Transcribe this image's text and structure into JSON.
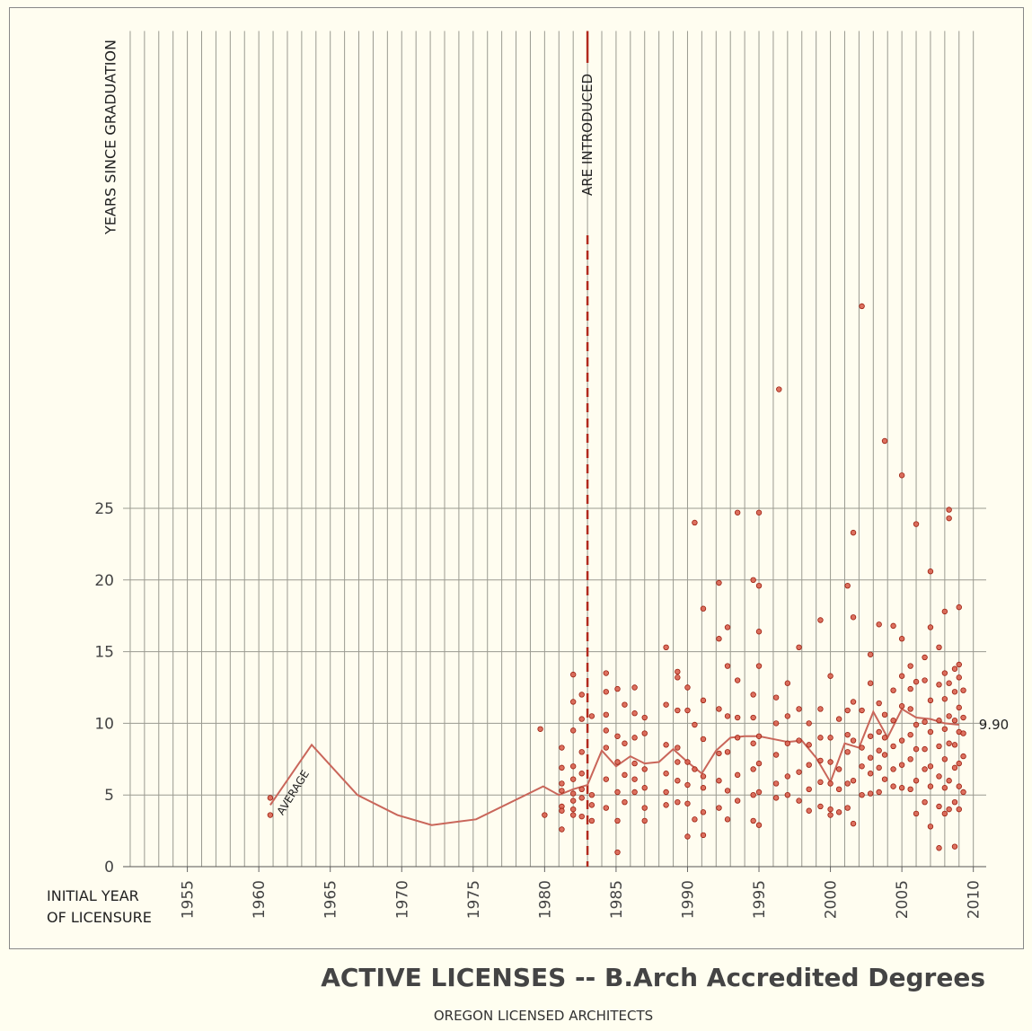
{
  "chart_data": {
    "type": "scatter",
    "title": "ACTIVE LICENSES -- B.Arch Accredited Degrees",
    "subtitle": "OREGON LICENSED ARCHITECTS",
    "y_label": "YEARS SINCE GRADUATION",
    "x_label": [
      "INITIAL YEAR",
      "OF LICENSURE"
    ],
    "xlim": [
      1950.5,
      2010.9
    ],
    "xticks": [
      1955,
      1960,
      1965,
      1970,
      1975,
      1980,
      1985,
      1990,
      1995,
      2000,
      2005,
      2010
    ],
    "ylim": [
      0,
      58.3
    ],
    "yticks": [
      0,
      5,
      10,
      15,
      20,
      25
    ],
    "grid": true,
    "annotation": {
      "text": "ARE INTRODUCED",
      "x": 1983,
      "color": "#b22a1e"
    },
    "scatter": {
      "color": "#d9604f",
      "edge": "#9c2010",
      "groups": [
        {
          "x": 1960.8,
          "values": [
            4.8,
            3.6
          ]
        },
        {
          "x": 1979.7,
          "values": [
            9.6
          ]
        },
        {
          "x": 1980,
          "values": [
            3.6
          ]
        },
        {
          "x": 1981.2,
          "values": [
            4.2,
            5.3,
            6.9,
            8.3,
            3.9,
            2.6,
            5.8
          ]
        },
        {
          "x": 1982,
          "values": [
            4.0,
            5.1,
            6.1,
            7.0,
            9.5,
            11.5,
            13.4,
            3.6,
            4.6
          ]
        },
        {
          "x": 1982.6,
          "values": [
            4.8,
            8.0,
            10.3,
            3.5,
            5.4,
            6.5,
            12.0
          ]
        },
        {
          "x": 1983.3,
          "values": [
            3.2,
            4.3,
            5.0,
            10.5
          ]
        },
        {
          "x": 1984.3,
          "values": [
            4.1,
            6.1,
            8.3,
            9.5,
            10.6,
            12.2,
            13.5
          ]
        },
        {
          "x": 1985.1,
          "values": [
            1.0,
            3.2,
            5.2,
            7.3,
            9.1,
            12.4
          ]
        },
        {
          "x": 1985.6,
          "values": [
            4.5,
            6.4,
            8.6,
            11.3
          ]
        },
        {
          "x": 1986.3,
          "values": [
            5.2,
            6.1,
            7.2,
            9.0,
            10.7,
            12.5
          ]
        },
        {
          "x": 1987,
          "values": [
            3.2,
            4.1,
            5.5,
            6.8,
            9.3,
            10.4
          ]
        },
        {
          "x": 1988.5,
          "values": [
            4.3,
            5.2,
            6.5,
            8.5,
            11.3,
            15.3
          ]
        },
        {
          "x": 1989.3,
          "values": [
            4.5,
            6.0,
            7.3,
            8.3,
            10.9,
            13.6,
            13.2
          ]
        },
        {
          "x": 1990,
          "values": [
            2.1,
            4.4,
            5.7,
            7.3,
            10.9,
            12.5
          ]
        },
        {
          "x": 1990.5,
          "values": [
            24.0,
            3.3,
            6.8,
            9.9
          ]
        },
        {
          "x": 1991.1,
          "values": [
            2.2,
            3.8,
            5.5,
            6.3,
            8.9,
            11.6,
            18.0
          ]
        },
        {
          "x": 1992.2,
          "values": [
            4.1,
            6.0,
            7.9,
            11.0,
            15.9,
            19.8
          ]
        },
        {
          "x": 1992.8,
          "values": [
            3.3,
            5.3,
            8.0,
            10.5,
            14.0,
            16.7
          ]
        },
        {
          "x": 1993.5,
          "values": [
            24.7,
            4.6,
            6.4,
            9.0,
            10.4,
            13.0
          ]
        },
        {
          "x": 1994.6,
          "values": [
            3.2,
            5.0,
            6.8,
            8.6,
            10.4,
            12.0,
            20.0
          ]
        },
        {
          "x": 1995,
          "values": [
            24.7,
            2.9,
            5.2,
            7.2,
            9.1,
            14.0,
            16.4,
            19.6
          ]
        },
        {
          "x": 1996.2,
          "values": [
            4.8,
            5.8,
            7.8,
            10.0,
            11.8
          ]
        },
        {
          "x": 1996.4,
          "values": [
            33.3
          ]
        },
        {
          "x": 1997,
          "values": [
            5.0,
            6.3,
            8.6,
            10.5,
            12.8
          ]
        },
        {
          "x": 1997.8,
          "values": [
            4.6,
            6.6,
            8.8,
            11.0,
            15.3
          ]
        },
        {
          "x": 1998.5,
          "values": [
            3.9,
            5.4,
            7.1,
            8.5,
            10.0
          ]
        },
        {
          "x": 1999.3,
          "values": [
            4.2,
            5.9,
            7.4,
            9.0,
            11.0,
            17.2
          ]
        },
        {
          "x": 2000,
          "values": [
            3.6,
            4.0,
            5.8,
            7.3,
            9.0,
            13.3
          ]
        },
        {
          "x": 2000.6,
          "values": [
            3.8,
            5.4,
            6.8,
            10.3
          ]
        },
        {
          "x": 2001.2,
          "values": [
            4.1,
            5.8,
            8.0,
            9.2,
            10.9,
            19.6
          ]
        },
        {
          "x": 2001.6,
          "values": [
            3.0,
            6.0,
            8.8,
            11.5,
            17.4,
            23.3
          ]
        },
        {
          "x": 2002.2,
          "values": [
            39.1,
            5.0,
            7.0,
            8.3,
            10.9
          ]
        },
        {
          "x": 2002.8,
          "values": [
            5.1,
            6.5,
            7.6,
            9.1,
            12.8,
            14.8
          ]
        },
        {
          "x": 2003.4,
          "values": [
            5.2,
            6.9,
            8.1,
            9.4,
            11.4,
            16.9
          ]
        },
        {
          "x": 2003.8,
          "values": [
            29.7,
            6.1,
            7.8,
            9.0,
            10.6
          ]
        },
        {
          "x": 2004.4,
          "values": [
            5.6,
            6.8,
            8.4,
            10.2,
            12.3,
            16.8
          ]
        },
        {
          "x": 2005,
          "values": [
            27.3,
            5.5,
            7.1,
            8.8,
            11.2,
            13.3,
            15.9
          ]
        },
        {
          "x": 2005.6,
          "values": [
            5.4,
            7.5,
            9.2,
            11.0,
            12.4,
            14.0
          ]
        },
        {
          "x": 2006,
          "values": [
            23.9,
            3.7,
            6.0,
            8.2,
            9.9,
            12.9
          ]
        },
        {
          "x": 2006.6,
          "values": [
            4.5,
            6.8,
            8.2,
            10.1,
            13.0,
            14.6
          ]
        },
        {
          "x": 2007,
          "values": [
            20.6,
            2.8,
            5.6,
            7.0,
            9.4,
            11.6,
            16.7
          ]
        },
        {
          "x": 2007.6,
          "values": [
            1.3,
            4.2,
            6.3,
            8.4,
            10.2,
            12.7,
            15.3
          ]
        },
        {
          "x": 2008,
          "values": [
            17.8,
            3.7,
            5.5,
            7.5,
            9.6,
            11.7,
            13.5
          ]
        },
        {
          "x": 2008.3,
          "values": [
            24.9,
            24.3,
            4.0,
            6.0,
            8.6,
            10.5,
            12.8
          ]
        },
        {
          "x": 2008.7,
          "values": [
            1.4,
            4.5,
            6.9,
            8.5,
            10.2,
            12.2,
            13.8
          ]
        },
        {
          "x": 2009,
          "values": [
            18.1,
            4.0,
            5.6,
            7.2,
            9.4,
            11.1,
            14.1,
            13.2
          ]
        },
        {
          "x": 2009.3,
          "values": [
            5.2,
            7.7,
            9.3,
            10.4,
            12.3
          ]
        }
      ]
    },
    "average": {
      "label": "AVERAGE",
      "end_label": "9.90",
      "color": "#c9665a",
      "x": [
        1960.8,
        1963.7,
        1966.9,
        1969.7,
        1972.1,
        1975.2,
        1979.9,
        1981,
        1982,
        1983,
        1984,
        1985,
        1986,
        1987,
        1988,
        1989,
        1990,
        1991,
        1992,
        1993,
        1994,
        1995,
        1996,
        1997,
        1998,
        1999,
        2000,
        2001,
        2002,
        2003,
        2004,
        2005,
        2006,
        2007,
        2008,
        2009
      ],
      "values": [
        4.3,
        8.5,
        5.0,
        3.6,
        2.9,
        3.3,
        5.6,
        5.0,
        5.4,
        5.7,
        8.1,
        7.0,
        7.7,
        7.2,
        7.3,
        8.2,
        7.3,
        6.5,
        8.1,
        9.0,
        9.1,
        9.1,
        8.9,
        8.7,
        8.8,
        7.6,
        5.9,
        8.6,
        8.3,
        10.8,
        9.0,
        11.0,
        10.4,
        10.3,
        10.0,
        9.9
      ]
    }
  }
}
